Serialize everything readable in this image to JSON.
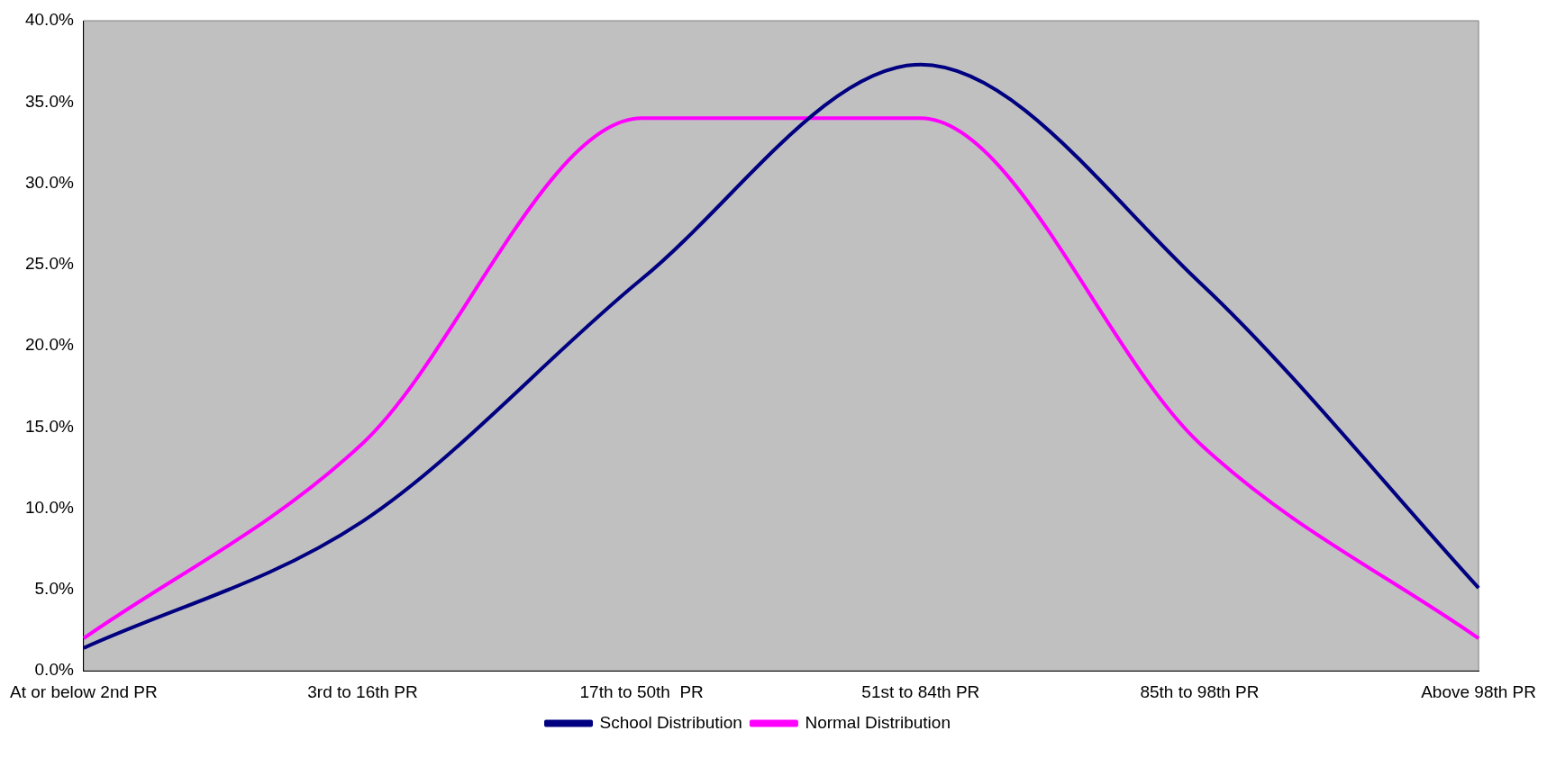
{
  "chart_data": {
    "type": "line",
    "categories": [
      "At or below 2nd PR",
      "3rd to 16th PR",
      "17th to 50th  PR",
      "51st to 84th PR",
      "85th to 98th PR",
      "Above 98th PR"
    ],
    "series": [
      {
        "name": "School Distribution",
        "color": "#000080",
        "values": [
          1.4,
          9.2,
          24.1,
          37.3,
          23.9,
          5.1
        ]
      },
      {
        "name": "Normal Distribution",
        "color": "#ff00ff",
        "values": [
          2.0,
          14.0,
          34.0,
          34.0,
          14.0,
          2.0
        ]
      }
    ],
    "ylim": [
      0,
      40
    ],
    "yticks": [
      {
        "value": 0,
        "label": "0.0%"
      },
      {
        "value": 5,
        "label": "5.0%"
      },
      {
        "value": 10,
        "label": "10.0%"
      },
      {
        "value": 15,
        "label": "15.0%"
      },
      {
        "value": 20,
        "label": "20.0%"
      },
      {
        "value": 25,
        "label": "25.0%"
      },
      {
        "value": 30,
        "label": "30.0%"
      },
      {
        "value": 35,
        "label": "35.0%"
      },
      {
        "value": 40,
        "label": "40.0%"
      }
    ],
    "grid": false,
    "legend": "bottom",
    "marker": "none",
    "line_style": "solid"
  }
}
